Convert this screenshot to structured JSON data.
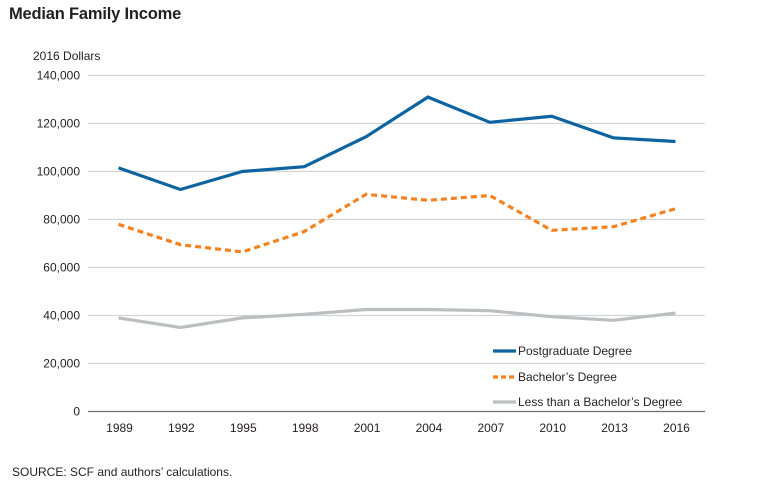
{
  "chart_data": {
    "type": "line",
    "title": "Median Family Income",
    "xlabel": "",
    "ylabel": "2016 Dollars",
    "ylim": [
      0,
      140000
    ],
    "yticks": [
      0,
      20000,
      40000,
      60000,
      80000,
      100000,
      120000,
      140000
    ],
    "ytick_labels": [
      "0",
      "20,000",
      "40,000",
      "60,000",
      "80,000",
      "100,000",
      "120,000",
      "140,000"
    ],
    "categories": [
      "1989",
      "1992",
      "1995",
      "1998",
      "2001",
      "2004",
      "2007",
      "2010",
      "2013",
      "2016"
    ],
    "grid": true,
    "legend_position": "bottom-right",
    "series": [
      {
        "name": "Postgraduate Degree",
        "color": "#0d64a0",
        "style": "solid",
        "values": [
          101500,
          92500,
          100000,
          102000,
          114500,
          131000,
          120500,
          123000,
          114000,
          112500
        ]
      },
      {
        "name": "Bachelor’s Degree",
        "color": "#f58220",
        "style": "dashed",
        "values": [
          78000,
          69500,
          66500,
          75000,
          90500,
          88000,
          90000,
          75500,
          77000,
          84500
        ]
      },
      {
        "name": "Less than a Bachelor’s Degree",
        "color": "#bcbec0",
        "style": "solid",
        "values": [
          39000,
          35000,
          39000,
          40500,
          42500,
          42500,
          42000,
          39500,
          38000,
          41000
        ]
      }
    ],
    "source": "SOURCE: SCF and authors’ calculations."
  }
}
